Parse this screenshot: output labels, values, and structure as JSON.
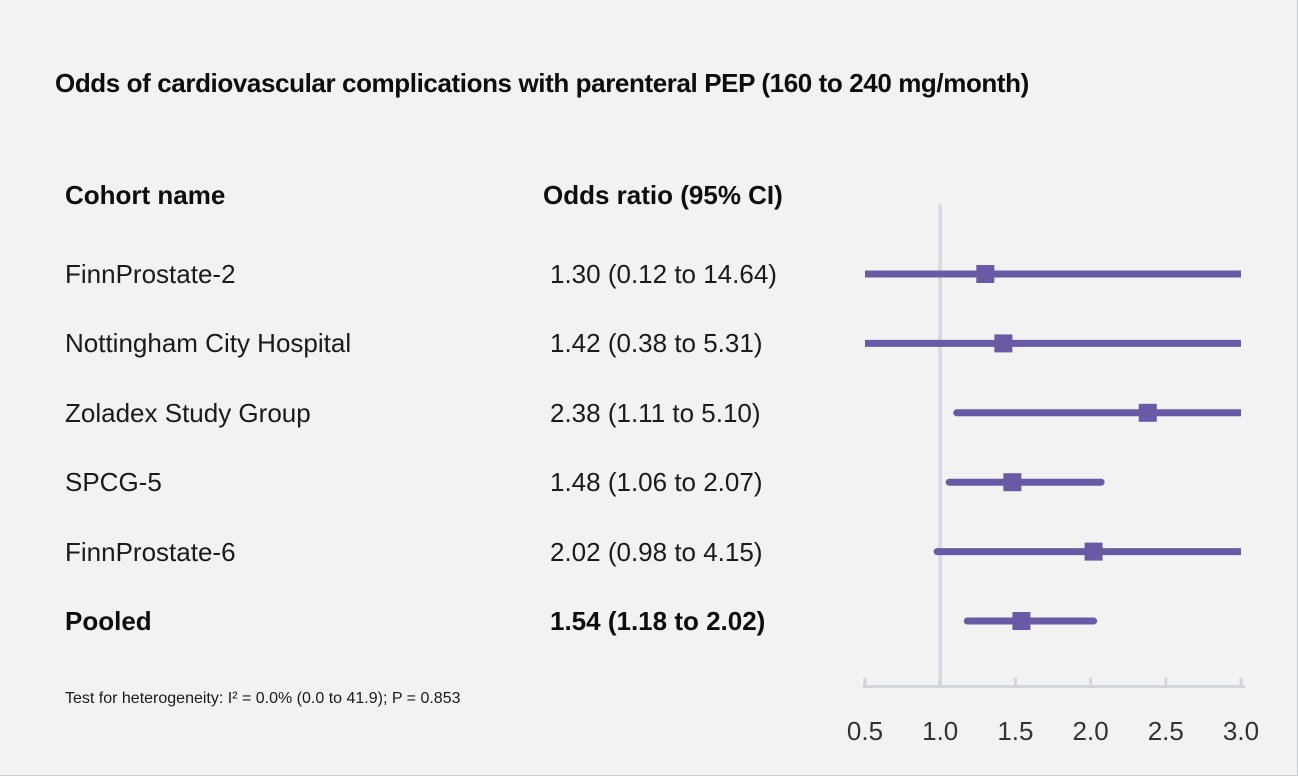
{
  "title": "Odds of cardiovascular complications with parenteral PEP (160 to 240 mg/month)",
  "columns": {
    "cohort": "Cohort name",
    "odds": "Odds ratio (95% CI)"
  },
  "footnote": "Test for heterogeneity: I² = 0.0% (0.0 to 41.9); P = 0.853",
  "colors": {
    "background": "#f2f2f2",
    "marker": "#6a5aa5",
    "axis": "#d0d5de",
    "reference_line": "#d4d9e2",
    "text": "#1a1a1a",
    "tick_label": "#333333"
  },
  "chart_data": {
    "type": "scatter",
    "subtype": "forest",
    "title": "Odds of cardiovascular complications with parenteral PEP (160 to 240 mg/month)",
    "xlabel": "",
    "ylabel": "",
    "x_range": [
      0.5,
      3.0
    ],
    "x_ticks": [
      0.5,
      1.0,
      1.5,
      2.0,
      2.5,
      3.0
    ],
    "x_tick_labels": [
      "0.5",
      "1.0",
      "1.5",
      "2.0",
      "2.5",
      "3.0"
    ],
    "reference_x": 1.0,
    "grid": false,
    "legend": false,
    "rows": [
      {
        "cohort": "FinnProstate-2",
        "label": "1.30 (0.12 to 14.64)",
        "estimate": 1.3,
        "ci_lower": 0.12,
        "ci_upper": 14.64,
        "pooled": false
      },
      {
        "cohort": "Nottingham City Hospital",
        "label": "1.42 (0.38 to 5.31)",
        "estimate": 1.42,
        "ci_lower": 0.38,
        "ci_upper": 5.31,
        "pooled": false
      },
      {
        "cohort": "Zoladex Study Group",
        "label": "2.38 (1.11 to 5.10)",
        "estimate": 2.38,
        "ci_lower": 1.11,
        "ci_upper": 5.1,
        "pooled": false
      },
      {
        "cohort": "SPCG-5",
        "label": "1.48 (1.06 to 2.07)",
        "estimate": 1.48,
        "ci_lower": 1.06,
        "ci_upper": 2.07,
        "pooled": false
      },
      {
        "cohort": "FinnProstate-6",
        "label": "2.02 (0.98 to 4.15)",
        "estimate": 2.02,
        "ci_lower": 0.98,
        "ci_upper": 4.15,
        "pooled": false
      },
      {
        "cohort": "Pooled",
        "label": "1.54 (1.18 to 2.02)",
        "estimate": 1.54,
        "ci_lower": 1.18,
        "ci_upper": 2.02,
        "pooled": true
      }
    ]
  }
}
